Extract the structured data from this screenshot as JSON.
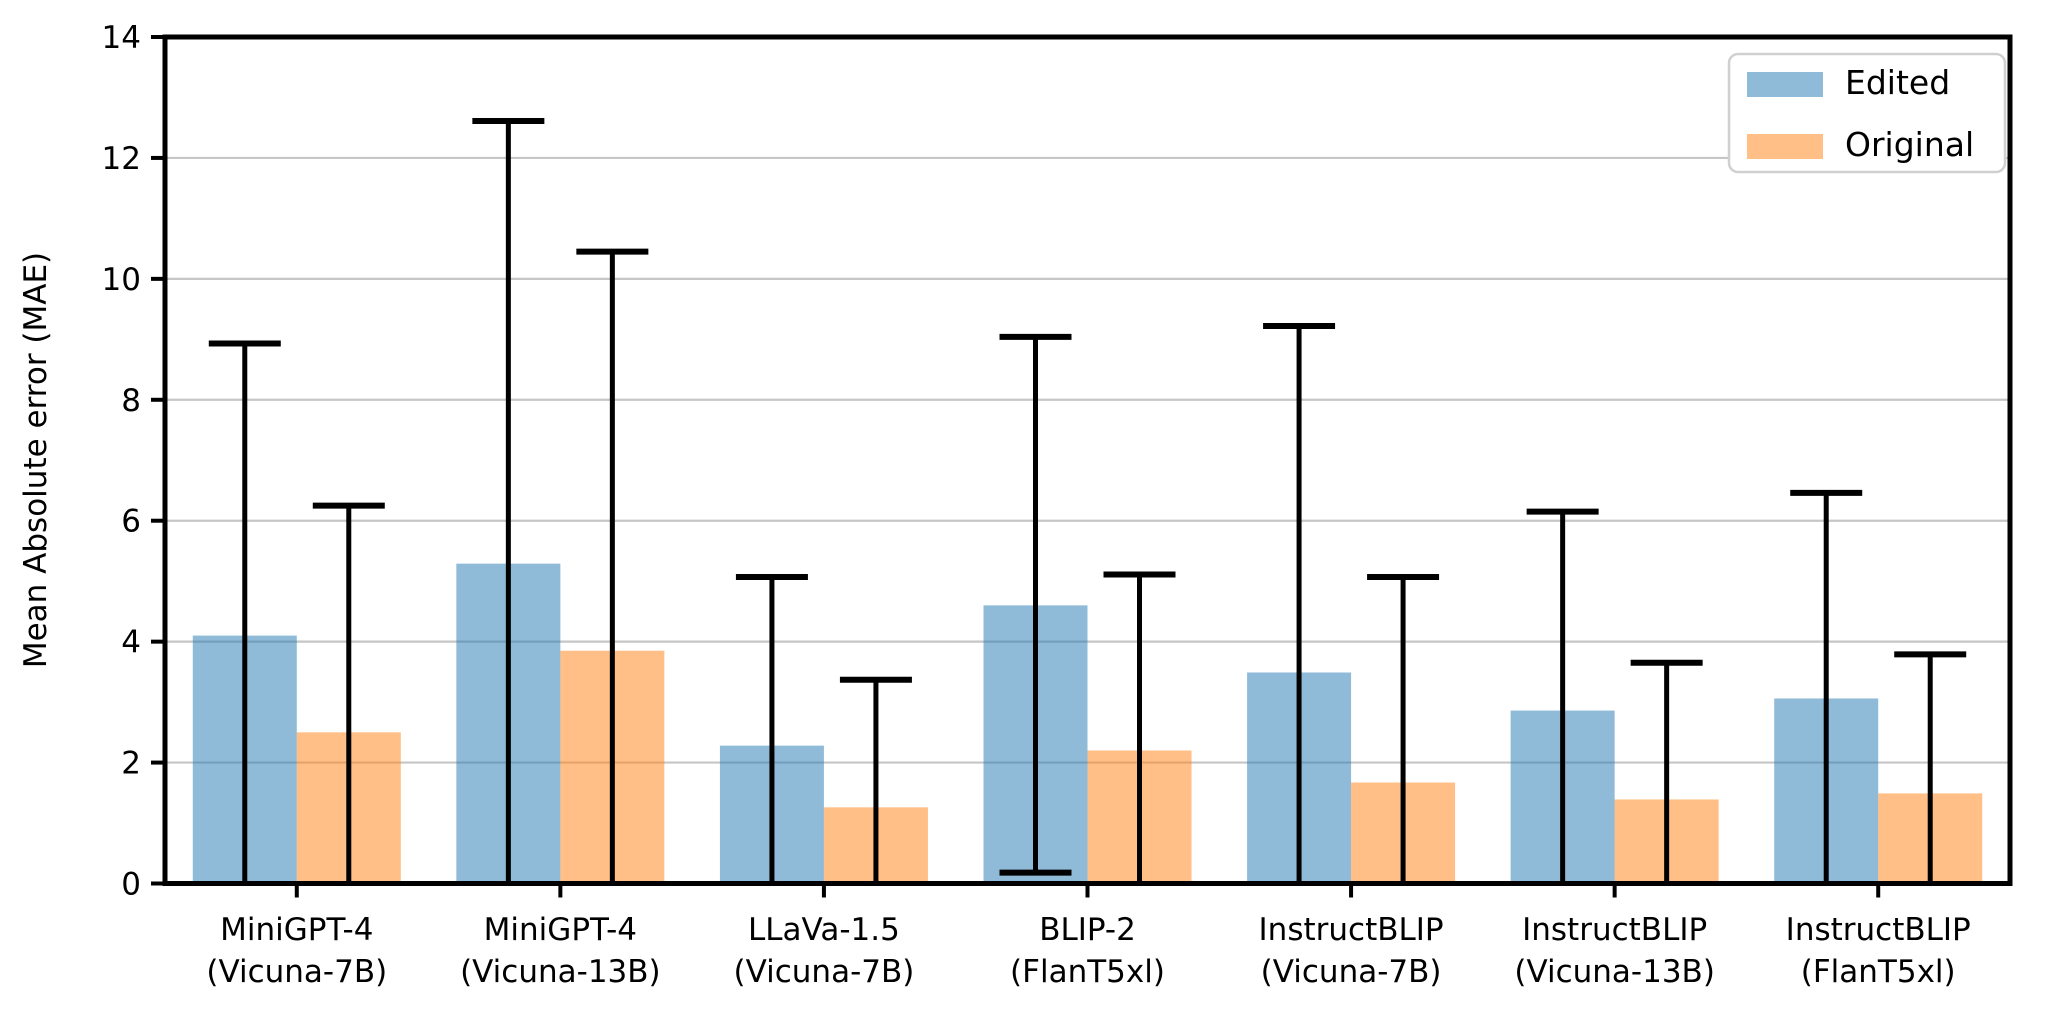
{
  "figure": {
    "background": "#ffffff",
    "ylabel": "Mean Absolute error (MAE)",
    "legend": [
      {
        "label": "Edited",
        "color": "rgba(31,119,180,0.5)"
      },
      {
        "label": "Original",
        "color": "rgba(255,127,14,0.5)"
      }
    ]
  },
  "chart_data": {
    "type": "bar",
    "title": "",
    "xlabel": "",
    "ylabel": "Mean Absolute error (MAE)",
    "categories": [
      "MiniGPT-4 (Vicuna-7B)",
      "MiniGPT-4 (Vicuna-13B)",
      "LLaVa-1.5 (Vicuna-7B)",
      "BLIP-2 (FlanT5xl)",
      "InstructBLIP (Vicuna-7B)",
      "InstructBLIP (Vicuna-13B)",
      "InstructBLIP (FlanT5xl)"
    ],
    "categories_lines": [
      [
        "MiniGPT-4",
        "(Vicuna-7B)"
      ],
      [
        "MiniGPT-4",
        "(Vicuna-13B)"
      ],
      [
        "LLaVa-1.5",
        "(Vicuna-7B)"
      ],
      [
        "BLIP-2",
        "(FlanT5xl)"
      ],
      [
        "InstructBLIP",
        "(Vicuna-7B)"
      ],
      [
        "InstructBLIP",
        "(Vicuna-13B)"
      ],
      [
        "InstructBLIP",
        "(FlanT5xl)"
      ]
    ],
    "series": [
      {
        "name": "Edited",
        "color": "rgba(31,119,180,0.5)",
        "values": [
          4.1,
          5.29,
          2.28,
          4.6,
          3.49,
          2.86,
          3.06
        ],
        "err_high": [
          8.93,
          12.61,
          5.07,
          9.04,
          9.22,
          6.15,
          6.46
        ],
        "err_low": [
          null,
          null,
          null,
          0.18,
          null,
          null,
          null
        ]
      },
      {
        "name": "Original",
        "color": "rgba(255,127,14,0.5)",
        "values": [
          2.5,
          3.85,
          1.26,
          2.2,
          1.67,
          1.39,
          1.49
        ],
        "err_high": [
          6.25,
          10.45,
          3.37,
          5.11,
          5.07,
          3.65,
          3.79
        ],
        "err_low": [
          null,
          null,
          null,
          null,
          null,
          null,
          null
        ]
      }
    ],
    "ylim": [
      0,
      14
    ],
    "yticks": [
      0,
      2,
      4,
      6,
      8,
      10,
      12,
      14
    ],
    "grid": true,
    "grid_color": "#c6c6c6",
    "errorbar_color": "#000000",
    "legend_position": "upper right"
  }
}
